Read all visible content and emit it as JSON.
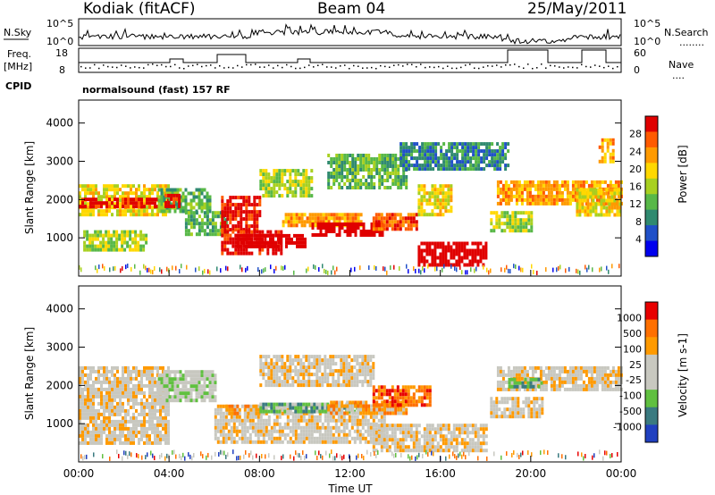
{
  "header": {
    "site": "Kodiak (fitACF)",
    "beam": "Beam 04",
    "date": "25/May/2011"
  },
  "top_panels": {
    "nsky_label": "N.Sky",
    "nsearch_label": "N.Search",
    "nsearch_style": "........",
    "nsky_ticks": [
      "10^5",
      "10^0"
    ],
    "freq_label": "Freq.",
    "freq_unit": "[MHz]",
    "freq_ticks": [
      "18",
      "8"
    ],
    "nave_label": "Nave",
    "nave_style": "....",
    "nave_ticks": [
      "60",
      "0"
    ],
    "cpid_label": "CPID",
    "cpid_text": "normalsound (fast) 157 RF"
  },
  "chart_data": [
    {
      "type": "heatmap",
      "name": "power",
      "ylabel": "Slant Range [km]",
      "xlabel": "",
      "x_ticks": [
        "",
        "",
        "",
        "",
        "",
        "",
        ""
      ],
      "y_ticks": [
        "4000",
        "3000",
        "2000",
        "1000"
      ],
      "ylim": [
        0,
        4600
      ],
      "xlim": [
        0,
        24
      ],
      "colorbar": {
        "label": "Power [dB]",
        "ticks": [
          "28",
          "24",
          "20",
          "16",
          "12",
          "8",
          "4"
        ],
        "colors": [
          "#0000ee",
          "#2050c8",
          "#308a70",
          "#58b848",
          "#a8d020",
          "#ffd800",
          "#ff9a00",
          "#ff5a00",
          "#e00000"
        ]
      },
      "regions": [
        {
          "t0": 0.0,
          "t1": 4.0,
          "r0": 1600,
          "r1": 2400,
          "level": 5
        },
        {
          "t0": 0.0,
          "t1": 4.0,
          "r0": 1800,
          "r1": 2050,
          "level": 8
        },
        {
          "t0": 0.2,
          "t1": 3.0,
          "r0": 700,
          "r1": 1200,
          "level": 4
        },
        {
          "t0": 3.5,
          "t1": 5.8,
          "r0": 1700,
          "r1": 2300,
          "level": 3
        },
        {
          "t0": 3.8,
          "t1": 4.5,
          "r0": 1800,
          "r1": 2150,
          "level": 8
        },
        {
          "t0": 4.7,
          "t1": 6.5,
          "r0": 1100,
          "r1": 1700,
          "level": 3
        },
        {
          "t0": 6.3,
          "t1": 8.0,
          "r0": 1200,
          "r1": 2100,
          "level": 8
        },
        {
          "t0": 6.3,
          "t1": 9.0,
          "r0": 600,
          "r1": 1200,
          "level": 8
        },
        {
          "t0": 7.0,
          "t1": 10.0,
          "r0": 800,
          "r1": 1100,
          "level": 9
        },
        {
          "t0": 8.0,
          "t1": 10.3,
          "r0": 2100,
          "r1": 2800,
          "level": 4
        },
        {
          "t0": 9.0,
          "t1": 12.5,
          "r0": 1300,
          "r1": 1650,
          "level": 6
        },
        {
          "t0": 10.3,
          "t1": 13.5,
          "r0": 1050,
          "r1": 1400,
          "level": 9
        },
        {
          "t0": 11.0,
          "t1": 14.5,
          "r0": 2300,
          "r1": 3200,
          "level": 3
        },
        {
          "t0": 13.0,
          "t1": 15.0,
          "r0": 1200,
          "r1": 1650,
          "level": 7
        },
        {
          "t0": 15.0,
          "t1": 16.5,
          "r0": 1600,
          "r1": 2400,
          "level": 5
        },
        {
          "t0": 15.0,
          "t1": 18.0,
          "r0": 300,
          "r1": 900,
          "level": 9
        },
        {
          "t0": 14.2,
          "t1": 19.0,
          "r0": 2800,
          "r1": 3500,
          "level": 2
        },
        {
          "t0": 18.2,
          "t1": 20.0,
          "r0": 1200,
          "r1": 1700,
          "level": 4
        },
        {
          "t0": 18.5,
          "t1": 24.0,
          "r0": 1850,
          "r1": 2500,
          "level": 6
        },
        {
          "t0": 22.0,
          "t1": 24.0,
          "r0": 1600,
          "r1": 2300,
          "level": 5
        },
        {
          "t0": 23.0,
          "t1": 23.6,
          "r0": 3000,
          "r1": 3600,
          "level": 6
        }
      ]
    },
    {
      "type": "heatmap",
      "name": "velocity",
      "ylabel": "Slant Range [km]",
      "xlabel": "Time UT",
      "x_ticks": [
        "00:00",
        "04:00",
        "08:00",
        "12:00",
        "16:00",
        "20:00",
        "00:00"
      ],
      "y_ticks": [
        "4000",
        "3000",
        "2000",
        "1000"
      ],
      "ylim": [
        0,
        4600
      ],
      "xlim": [
        0,
        24
      ],
      "colorbar": {
        "label": "Velocity [m s-1]",
        "ticks": [
          "1000",
          "500",
          "100",
          "25",
          "-25",
          "-100",
          "-500",
          "-1000"
        ],
        "colors": [
          "#2040c0",
          "#3a7a80",
          "#60c040",
          "#c8c8c0",
          "#c8c8c0",
          "#ff9a00",
          "#ff7000",
          "#e80000"
        ]
      },
      "regions": [
        {
          "t0": 0.0,
          "t1": 4.0,
          "r0": 500,
          "r1": 2500,
          "level": 4
        },
        {
          "t0": 3.5,
          "t1": 6.0,
          "r0": 1600,
          "r1": 2400,
          "level": 3
        },
        {
          "t0": 6.0,
          "t1": 13.5,
          "r0": 500,
          "r1": 1500,
          "level": 4
        },
        {
          "t0": 6.5,
          "t1": 8.0,
          "r0": 1300,
          "r1": 1500,
          "level": 5
        },
        {
          "t0": 8.0,
          "t1": 12.5,
          "r0": 1350,
          "r1": 1550,
          "level": 2
        },
        {
          "t0": 11.0,
          "t1": 14.5,
          "r0": 1300,
          "r1": 1600,
          "level": 5
        },
        {
          "t0": 13.0,
          "t1": 15.5,
          "r0": 1500,
          "r1": 2000,
          "level": 6
        },
        {
          "t0": 8.0,
          "t1": 13.0,
          "r0": 2000,
          "r1": 2800,
          "level": 4
        },
        {
          "t0": 13.0,
          "t1": 18.0,
          "r0": 300,
          "r1": 1000,
          "level": 4
        },
        {
          "t0": 18.5,
          "t1": 24.0,
          "r0": 1900,
          "r1": 2500,
          "level": 4
        },
        {
          "t0": 19.0,
          "t1": 20.5,
          "r0": 2000,
          "r1": 2200,
          "level": 2
        },
        {
          "t0": 18.2,
          "t1": 20.5,
          "r0": 1200,
          "r1": 1700,
          "level": 4
        }
      ]
    }
  ]
}
